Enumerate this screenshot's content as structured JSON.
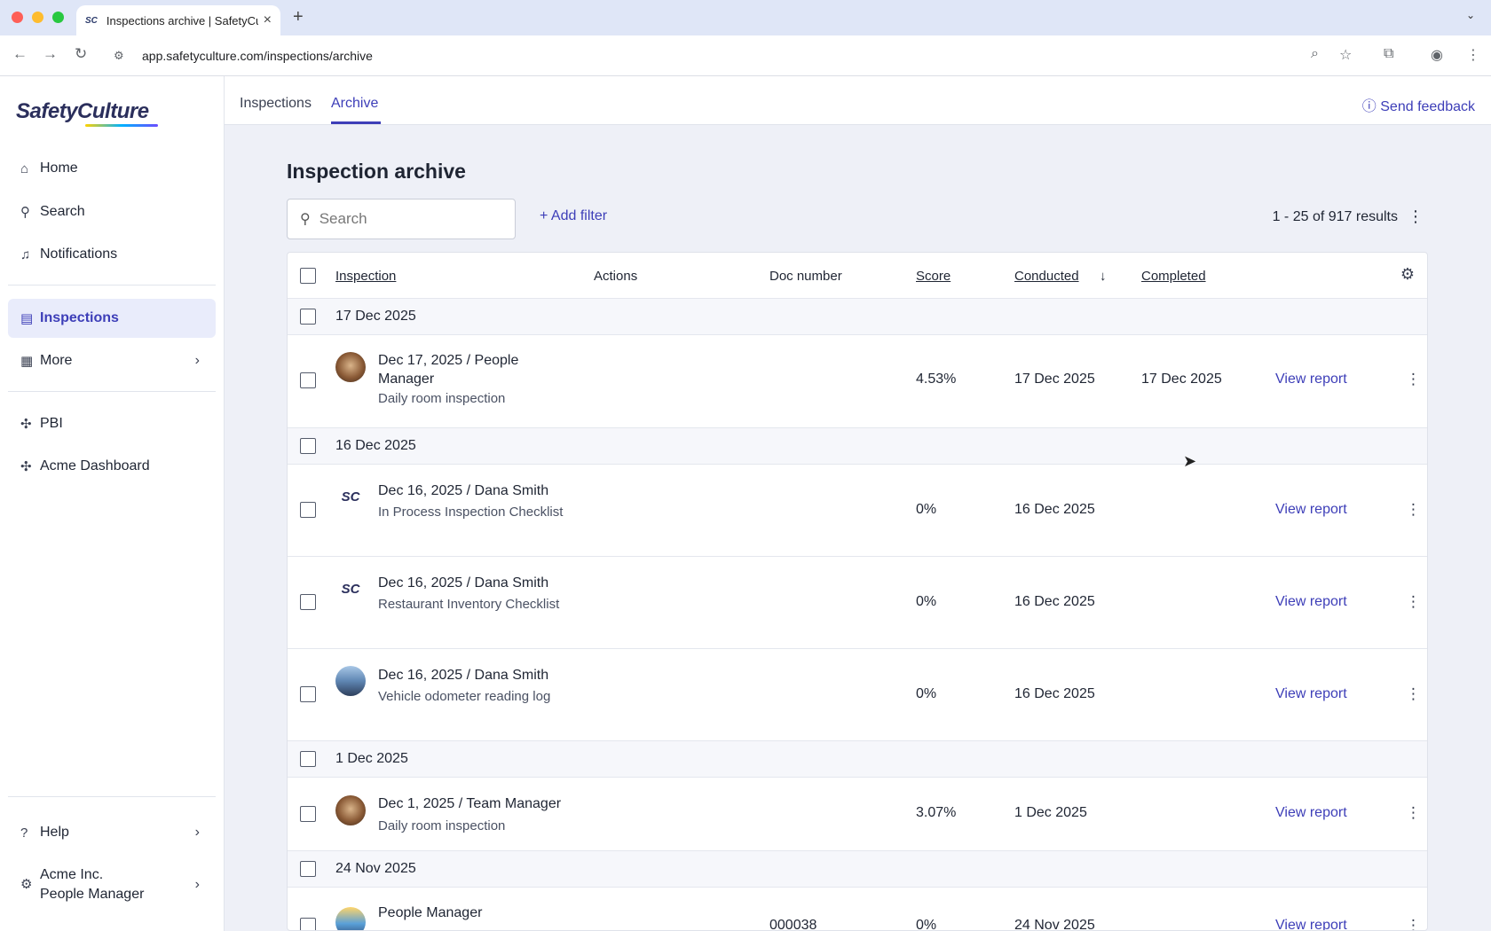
{
  "browser": {
    "tab_title": "Inspections archive | SafetyCulture",
    "tab_favicon": "SC",
    "url": "app.safetyculture.com/inspections/archive"
  },
  "sidebar": {
    "logo": "SafetyCulture",
    "items": [
      {
        "label": "Home",
        "icon": "home-icon"
      },
      {
        "label": "Search",
        "icon": "search-icon"
      },
      {
        "label": "Notifications",
        "icon": "bell-icon"
      },
      {
        "label": "Inspections",
        "icon": "clipboard-icon",
        "active": true
      },
      {
        "label": "More",
        "icon": "grid-icon"
      },
      {
        "label": "PBI",
        "icon": "puzzle-icon"
      },
      {
        "label": "Acme Dashboard",
        "icon": "puzzle-icon"
      }
    ],
    "help": "Help",
    "org_name": "Acme Inc.",
    "org_role": "People Manager"
  },
  "topnav": {
    "tabs": [
      "Inspections",
      "Archive"
    ],
    "selected": "Archive",
    "feedback": "Send feedback"
  },
  "main": {
    "title": "Inspection archive",
    "search_placeholder": "Search",
    "add_filter": "Add filter",
    "results": "1 - 25 of 917 results"
  },
  "table": {
    "columns": {
      "inspection": "Inspection",
      "actions": "Actions",
      "doc_number": "Doc number",
      "score": "Score",
      "conducted": "Conducted",
      "completed": "Completed"
    },
    "groups": [
      {
        "date": "17 Dec 2025",
        "rows": [
          {
            "title": "Dec 17, 2025 / People Manager",
            "template": "Daily room inspection",
            "doc": "",
            "score": "4.53%",
            "conducted": "17 Dec 2025",
            "completed": "17 Dec 2025",
            "action": "View report"
          }
        ]
      },
      {
        "date": "16 Dec 2025",
        "rows": [
          {
            "title": "Dec 16, 2025 / Dana Smith",
            "template": "In Process Inspection Checklist",
            "doc": "",
            "score": "0%",
            "conducted": "16 Dec 2025",
            "completed": "",
            "action": "View report"
          },
          {
            "title": "Dec 16, 2025 / Dana Smith",
            "template": "Restaurant Inventory Checklist",
            "doc": "",
            "score": "0%",
            "conducted": "16 Dec 2025",
            "completed": "",
            "action": "View report"
          },
          {
            "title": "Dec 16, 2025 / Dana Smith",
            "template": "Vehicle odometer reading log",
            "doc": "",
            "score": "0%",
            "conducted": "16 Dec 2025",
            "completed": "",
            "action": "View report"
          }
        ]
      },
      {
        "date": "1 Dec 2025",
        "rows": [
          {
            "title": "Dec 1, 2025 / Team Manager",
            "template": "Daily room inspection",
            "doc": "",
            "score": "3.07%",
            "conducted": "1 Dec 2025",
            "completed": "",
            "action": "View report"
          }
        ]
      },
      {
        "date": "24 Nov 2025",
        "rows": [
          {
            "title": "People Manager",
            "template": "",
            "doc": "000038",
            "score": "0%",
            "conducted": "24 Nov 2025",
            "completed": "",
            "action": "View report"
          }
        ]
      }
    ]
  }
}
